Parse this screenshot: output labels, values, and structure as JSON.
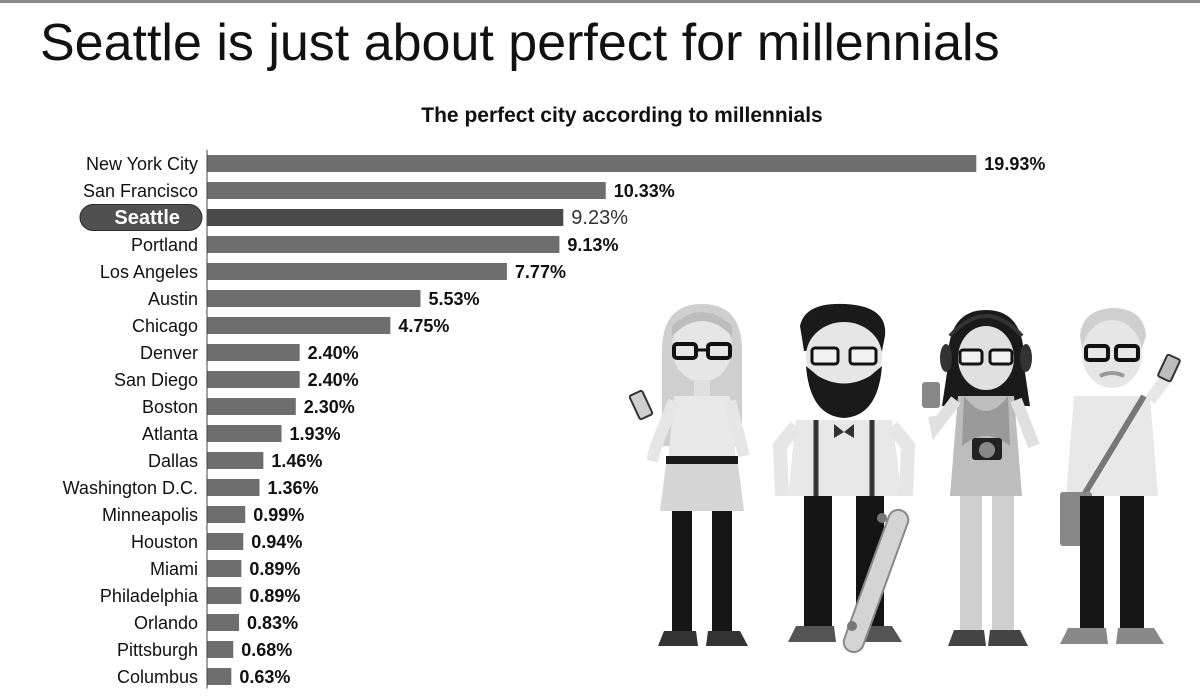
{
  "header": {
    "title": "Seattle is just about perfect for millennials"
  },
  "chart_data": {
    "type": "bar",
    "orientation": "horizontal",
    "title": "The perfect city according to millennials",
    "xlabel": "",
    "ylabel": "",
    "categories": [
      "New York City",
      "San Francisco",
      "Seattle",
      "Portland",
      "Los Angeles",
      "Austin",
      "Chicago",
      "Denver",
      "San Diego",
      "Boston",
      "Atlanta",
      "Dallas",
      "Washington D.C.",
      "Minneapolis",
      "Houston",
      "Miami",
      "Philadelphia",
      "Orlando",
      "Pittsburgh",
      "Columbus"
    ],
    "values": [
      19.93,
      10.33,
      9.23,
      9.13,
      7.77,
      5.53,
      4.75,
      2.4,
      2.4,
      2.3,
      1.93,
      1.46,
      1.36,
      0.99,
      0.94,
      0.89,
      0.89,
      0.83,
      0.68,
      0.63
    ],
    "value_labels": [
      "19.93%",
      "10.33%",
      "9.23%",
      "9.13%",
      "7.77%",
      "5.53%",
      "4.75%",
      "2.40%",
      "2.40%",
      "2.30%",
      "1.93%",
      "1.46%",
      "1.36%",
      "0.99%",
      "0.94%",
      "0.89%",
      "0.89%",
      "0.83%",
      "0.68%",
      "0.63%"
    ],
    "highlight": "Seattle",
    "grid": false,
    "legend": "none",
    "colors": {
      "bar": "#6e6e6e",
      "bar_highlight": "#4a4a4a",
      "pill": "#505050",
      "pill_text": "#ffffff",
      "label_text": "#111111"
    }
  },
  "illustration": {
    "figures": [
      "woman-with-phone",
      "bearded-man-with-skateboard",
      "woman-with-camera-and-coffee",
      "man-with-messenger-bag"
    ]
  }
}
